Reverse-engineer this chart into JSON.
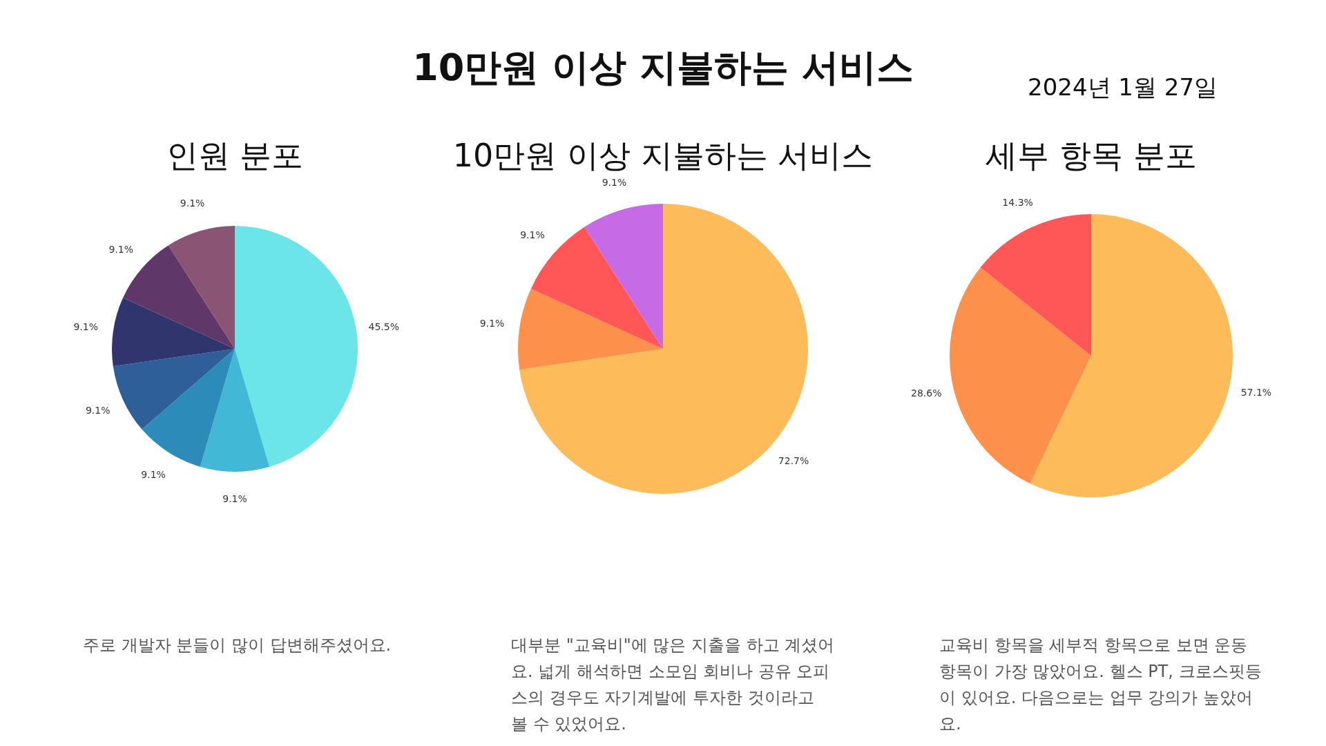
{
  "chart_data": [
    {
      "type": "other",
      "title": "10만원 이상 지불하는 서비스",
      "annotations": [
        "2024년 1월 27일"
      ]
    },
    {
      "type": "pie",
      "title": "인원 분포",
      "categories": [
        null,
        null,
        null,
        null,
        null,
        null,
        null
      ],
      "values": [
        45.5,
        9.1,
        9.1,
        9.1,
        9.1,
        9.1,
        9.1
      ],
      "value_labels": [
        "45.5%",
        "9.1%",
        "9.1%",
        "9.1%",
        "9.1%",
        "9.1%",
        "9.1%"
      ],
      "colors": [
        "#6ce5e8",
        "#41b8d5",
        "#2d8bba",
        "#2f5f98",
        "#31356e",
        "#5f3768",
        "#8a5574"
      ],
      "legend": false,
      "annotations": [
        "주로 개발자 분들이 많이 답변해주셨어요."
      ]
    },
    {
      "type": "pie",
      "title": "10만원 이상 지불하는 서비스",
      "categories": [
        null,
        null,
        null,
        null
      ],
      "values": [
        72.7,
        9.1,
        9.1,
        9.1
      ],
      "value_labels": [
        "72.7%",
        "9.1%",
        "9.1%",
        "9.1%"
      ],
      "colors": [
        "#fdbb5a",
        "#fd914b",
        "#ff5757",
        "#c76ae5"
      ],
      "legend": false,
      "annotations": [
        "대부분 \"교육비\"에 많은 지출을 하고 계셨어요. 넓게 해석하면 소모임 회비나 공유 오피스의 경우도 자기계발에 투자한 것이라고 볼 수 있었어요."
      ]
    },
    {
      "type": "pie",
      "title": "세부 항목 분포",
      "categories": [
        null,
        null,
        null
      ],
      "values": [
        57.1,
        28.6,
        14.3
      ],
      "value_labels": [
        "57.1%",
        "28.6%",
        "14.3%"
      ],
      "colors": [
        "#fdbb5a",
        "#fd914b",
        "#ff5757"
      ],
      "legend": false,
      "annotations": [
        "교육비 항목을 세부적 항목으로 보면 운동항목이 가장 많았어요. 헬스 PT, 크로스핏등이 있어요. 다음으로는 업무 강의가 높았어요."
      ]
    }
  ]
}
